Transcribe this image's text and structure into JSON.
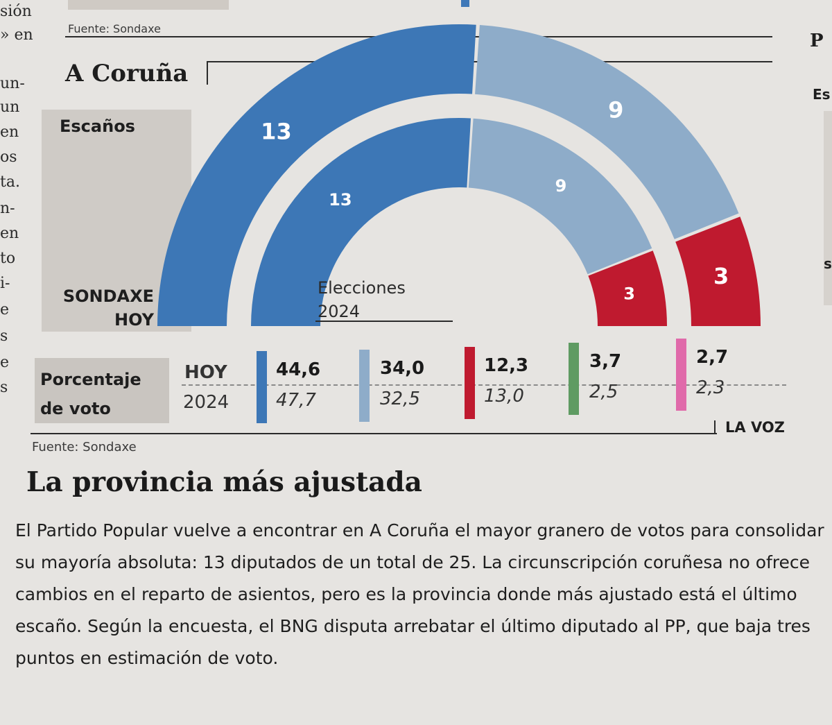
{
  "colors": {
    "pp": "#3d77b6",
    "psoe_like": "#8eacc9",
    "red": "#bf1a2f",
    "green": "#5f9b62",
    "pink": "#e06aaa"
  },
  "edge": {
    "left_fragments": [
      "sión",
      "» en",
      "un-",
      "un",
      "en",
      "os",
      "ta.",
      "n-",
      "en",
      "to",
      "i-",
      "e",
      "s",
      "e",
      "s"
    ],
    "top_source": "Fuente: Sondaxe",
    "right_p": "P",
    "right_es": "Es",
    "right_s": "s"
  },
  "chart_data": {
    "type": "pie",
    "title": "A Coruña",
    "subtitle": "Escaños",
    "outer_ring_label": "SONDAXE HOY",
    "inner_ring_label": [
      "Elecciones",
      "2024"
    ],
    "series": [
      {
        "name": "SONDAXE HOY",
        "seats": [
          13,
          9,
          3
        ]
      },
      {
        "name": "Elecciones 2024",
        "seats": [
          13,
          9,
          3
        ]
      }
    ],
    "vote_percentage": {
      "label": "Porcentaje de voto",
      "label_lines": [
        "Porcentaje",
        "de voto"
      ],
      "row_labels": [
        "HOY",
        "2024"
      ],
      "hoy": [
        "44,6",
        "34,0",
        "12,3",
        "3,7",
        "2,7"
      ],
      "y2024": [
        "47,7",
        "32,5",
        "13,0",
        "2,5",
        "2,3"
      ]
    },
    "source": "Fuente: Sondaxe",
    "credit": "LA VOZ"
  },
  "article": {
    "headline": "La provincia más ajustada",
    "body": "El Partido Popular vuelve a encontrar en A Coruña el mayor granero de votos para consolidar su mayoría absoluta: 13 diputados de un total de 25. La circunscripción coruñesa no ofrece cambios en el reparto de asientos, pero es la provincia donde más ajustado está el último escaño. Según la encuesta, el BNG disputa arrebatar el último diputado al PP, que baja tres puntos en estimación de voto."
  }
}
